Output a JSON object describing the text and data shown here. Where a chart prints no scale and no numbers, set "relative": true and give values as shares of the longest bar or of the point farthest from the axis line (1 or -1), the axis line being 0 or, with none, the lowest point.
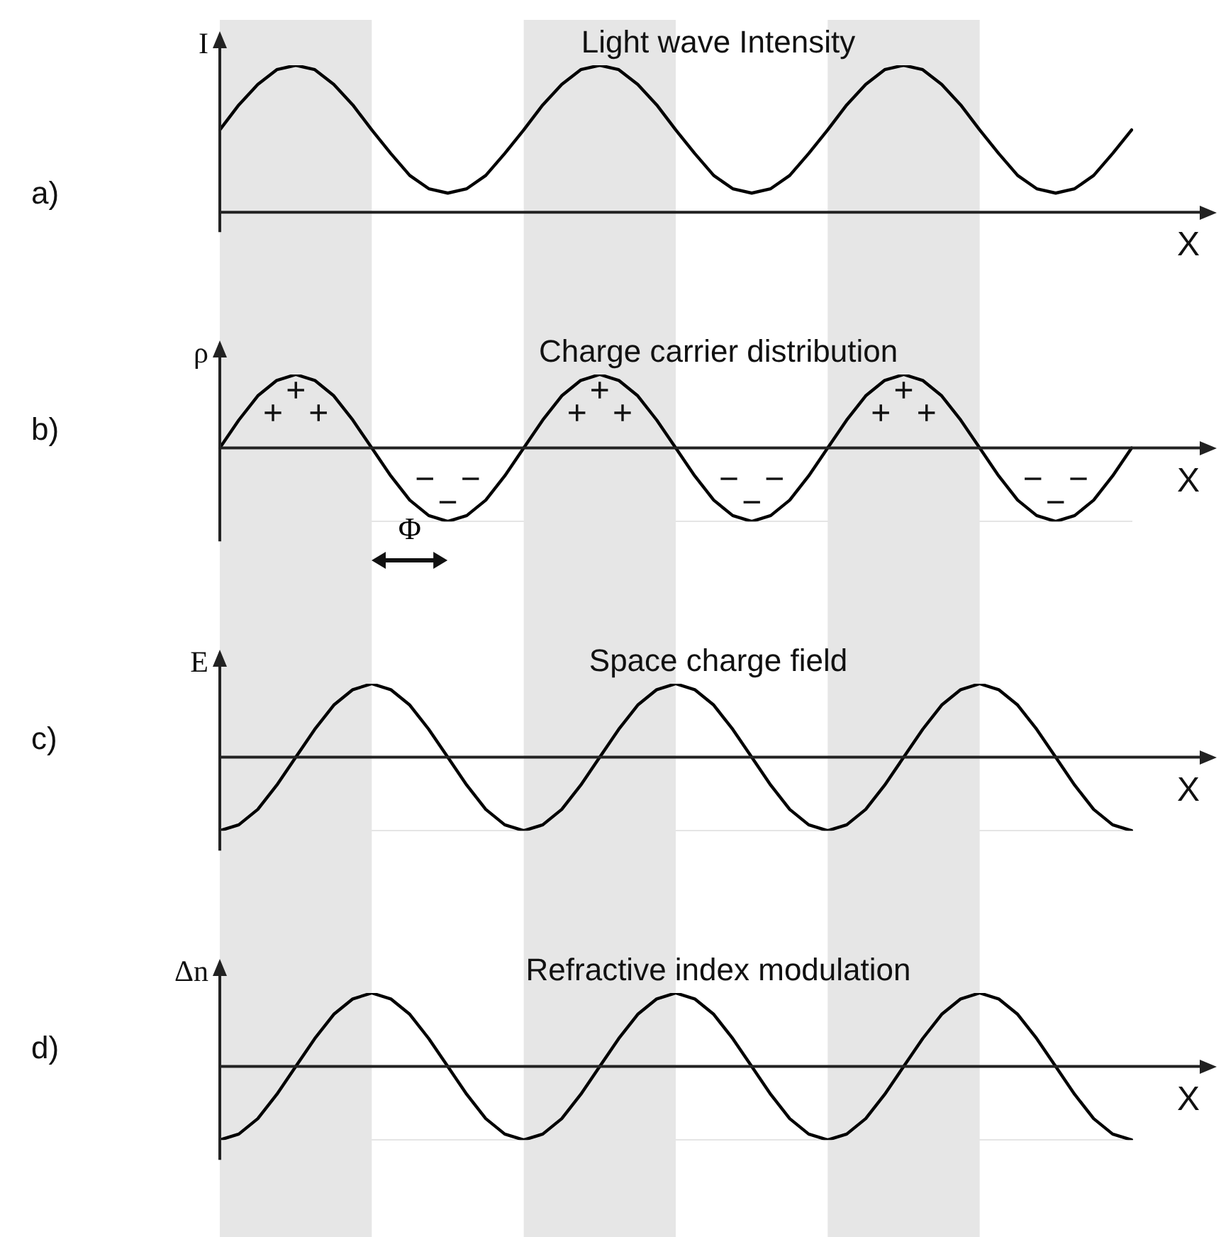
{
  "chart_data": [
    {
      "type": "line",
      "title": "Light wave Intensity",
      "xlabel": "X",
      "ylabel": "I",
      "relative": true,
      "marker": "none",
      "categories": [
        null,
        null,
        null,
        null,
        null,
        null,
        null,
        null,
        null,
        null,
        null,
        null,
        null,
        null,
        null,
        null,
        null,
        null,
        null,
        null,
        null,
        null,
        null,
        null,
        null,
        null,
        null,
        null,
        null,
        null,
        null,
        null,
        null,
        null,
        null,
        null,
        null,
        null,
        null,
        null,
        null,
        null,
        null,
        null,
        null,
        null,
        null,
        null,
        null
      ],
      "series": [
        {
          "color": "#000000",
          "values": [
            0.56,
            0.73,
            0.87,
            0.97,
            1,
            0.97,
            0.87,
            0.73,
            0.56,
            0.4,
            0.25,
            0.16,
            0.13,
            0.16,
            0.25,
            0.4,
            0.56,
            0.73,
            0.87,
            0.97,
            1,
            0.97,
            0.87,
            0.73,
            0.56,
            0.4,
            0.25,
            0.16,
            0.13,
            0.16,
            0.25,
            0.4,
            0.56,
            0.73,
            0.87,
            0.97,
            1,
            0.97,
            0.87,
            0.73,
            0.56,
            0.4,
            0.25,
            0.16,
            0.13,
            0.16,
            0.25,
            0.4,
            0.56
          ]
        }
      ],
      "annotations": [
        "a)"
      ]
    },
    {
      "type": "line",
      "title": "Charge carrier distribution",
      "xlabel": "X",
      "ylabel": "ρ",
      "relative": true,
      "marker": "none",
      "categories": [
        null,
        null,
        null,
        null,
        null,
        null,
        null,
        null,
        null,
        null,
        null,
        null,
        null,
        null,
        null,
        null,
        null,
        null,
        null,
        null,
        null,
        null,
        null,
        null,
        null,
        null,
        null,
        null,
        null,
        null,
        null,
        null,
        null,
        null,
        null,
        null,
        null,
        null,
        null,
        null,
        null,
        null,
        null,
        null,
        null,
        null,
        null,
        null,
        null
      ],
      "series": [
        {
          "color": "#000000",
          "values": [
            0,
            0.38,
            0.71,
            0.92,
            1,
            0.92,
            0.71,
            0.38,
            0,
            -0.38,
            -0.71,
            -0.92,
            -1,
            -0.92,
            -0.71,
            -0.38,
            0,
            0.38,
            0.71,
            0.92,
            1,
            0.92,
            0.71,
            0.38,
            0,
            -0.38,
            -0.71,
            -0.92,
            -1,
            -0.92,
            -0.71,
            -0.38,
            0,
            0.38,
            0.71,
            0.92,
            1,
            0.92,
            0.71,
            0.38,
            0,
            -0.38,
            -0.71,
            -0.92,
            -1,
            -0.92,
            -0.71,
            -0.38,
            0
          ]
        }
      ],
      "annotations": [
        "b)",
        "+",
        "+",
        "+",
        "−",
        "−",
        "−",
        "+",
        "+",
        "+",
        "−",
        "−",
        "−",
        "+",
        "+",
        "+",
        "−",
        "−",
        "−",
        "Φ"
      ]
    },
    {
      "type": "line",
      "title": "Space charge field",
      "xlabel": "X",
      "ylabel": "E",
      "relative": true,
      "marker": "none",
      "categories": [
        null,
        null,
        null,
        null,
        null,
        null,
        null,
        null,
        null,
        null,
        null,
        null,
        null,
        null,
        null,
        null,
        null,
        null,
        null,
        null,
        null,
        null,
        null,
        null,
        null,
        null,
        null,
        null,
        null,
        null,
        null,
        null,
        null,
        null,
        null,
        null,
        null,
        null,
        null,
        null,
        null,
        null,
        null,
        null,
        null,
        null,
        null,
        null,
        null
      ],
      "series": [
        {
          "color": "#000000",
          "values": [
            -1,
            -0.92,
            -0.71,
            -0.38,
            0,
            0.38,
            0.71,
            0.92,
            1,
            0.92,
            0.71,
            0.38,
            0,
            -0.38,
            -0.71,
            -0.92,
            -1,
            -0.92,
            -0.71,
            -0.38,
            0,
            0.38,
            0.71,
            0.92,
            1,
            0.92,
            0.71,
            0.38,
            0,
            -0.38,
            -0.71,
            -0.92,
            -1,
            -0.92,
            -0.71,
            -0.38,
            0,
            0.38,
            0.71,
            0.92,
            1,
            0.92,
            0.71,
            0.38,
            0,
            -0.38,
            -0.71,
            -0.92,
            -1
          ]
        }
      ],
      "annotations": [
        "c)"
      ]
    },
    {
      "type": "line",
      "title": "Refractive index modulation",
      "xlabel": "X",
      "ylabel": "Δn",
      "relative": true,
      "marker": "none",
      "categories": [
        null,
        null,
        null,
        null,
        null,
        null,
        null,
        null,
        null,
        null,
        null,
        null,
        null,
        null,
        null,
        null,
        null,
        null,
        null,
        null,
        null,
        null,
        null,
        null,
        null,
        null,
        null,
        null,
        null,
        null,
        null,
        null,
        null,
        null,
        null,
        null,
        null,
        null,
        null,
        null,
        null,
        null,
        null,
        null,
        null,
        null,
        null,
        null,
        null
      ],
      "series": [
        {
          "color": "#000000",
          "values": [
            -1,
            -0.92,
            -0.71,
            -0.38,
            0,
            0.38,
            0.71,
            0.92,
            1,
            0.92,
            0.71,
            0.38,
            0,
            -0.38,
            -0.71,
            -0.92,
            -1,
            -0.92,
            -0.71,
            -0.38,
            0,
            0.38,
            0.71,
            0.92,
            1,
            0.92,
            0.71,
            0.38,
            0,
            -0.38,
            -0.71,
            -0.92,
            -1,
            -0.92,
            -0.71,
            -0.38,
            0,
            0.38,
            0.71,
            0.92,
            1,
            0.92,
            0.71,
            0.38,
            0,
            -0.38,
            -0.71,
            -0.92,
            -1
          ]
        }
      ],
      "annotations": [
        "d)"
      ]
    }
  ]
}
